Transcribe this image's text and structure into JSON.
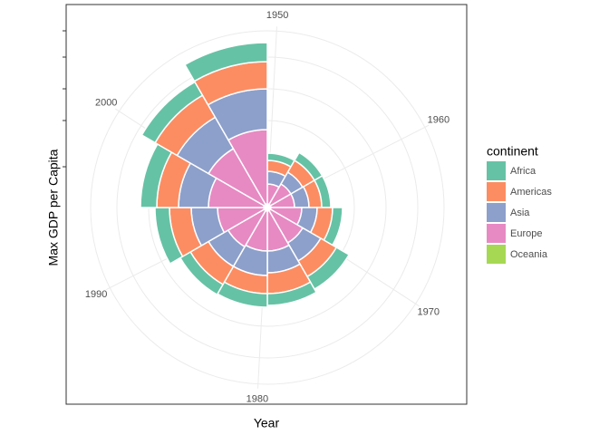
{
  "chart_data": {
    "type": "polar-stacked-bar",
    "x_label": "Year",
    "y_label": "Max GDP per Capita",
    "legend_title": "continent",
    "x": [
      1952,
      1957,
      1962,
      1967,
      1972,
      1977,
      1982,
      1987,
      1992,
      1997,
      2002,
      2007
    ],
    "bar_width": 5,
    "xlim": [
      1949.5,
      2009.5
    ],
    "xticks": [
      1950,
      1960,
      1970,
      1980,
      1990,
      2000
    ],
    "ylim": [
      0,
      200
    ],
    "yticks": [
      45,
      96,
      131,
      166,
      195
    ],
    "grid": true,
    "legend": "right",
    "series": [
      {
        "name": "Oceania",
        "color": "#a6d854",
        "values": [
          4,
          4,
          4,
          4,
          4,
          4,
          4,
          4,
          4,
          4,
          4,
          4
        ]
      },
      {
        "name": "Europe",
        "color": "#e78ac3",
        "values": [
          22,
          26,
          26,
          34,
          41,
          44,
          44,
          46,
          51,
          61,
          71,
          82
        ]
      },
      {
        "name": "Asia",
        "color": "#8da0cb",
        "values": [
          14,
          15,
          16,
          17,
          23,
          24,
          27,
          25,
          29,
          33,
          40,
          45
        ]
      },
      {
        "name": "Americas",
        "color": "#fc8d62",
        "values": [
          12,
          15,
          14,
          17,
          20,
          23,
          20,
          23,
          24,
          24,
          28,
          30
        ]
      },
      {
        "name": "Africa",
        "color": "#66c2a5",
        "values": [
          8,
          10,
          10,
          11,
          16,
          13,
          15,
          13,
          16,
          18,
          17,
          21
        ]
      }
    ]
  }
}
